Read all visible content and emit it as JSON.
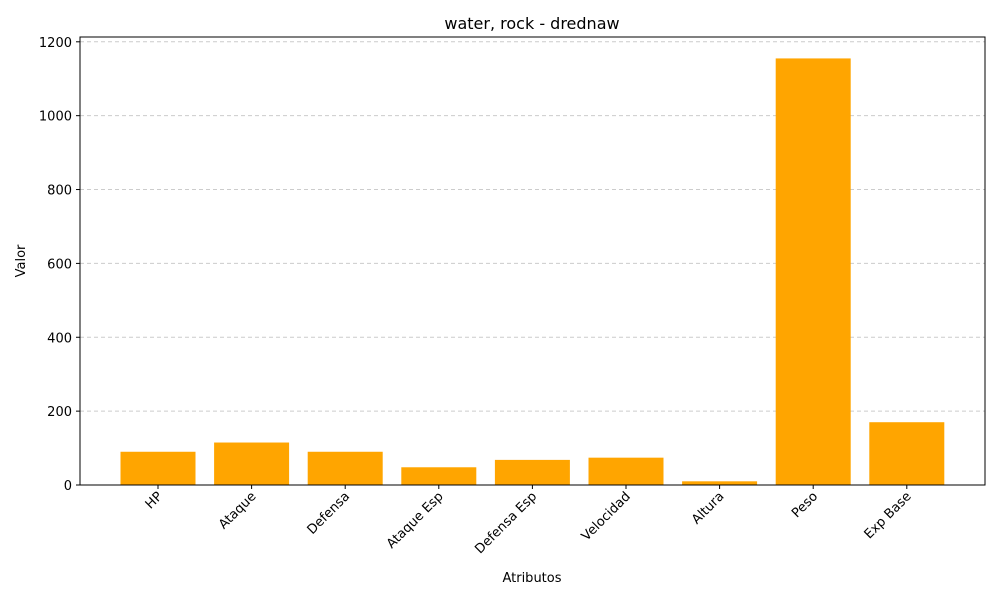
{
  "chart_data": {
    "type": "bar",
    "title": "water, rock - drednaw",
    "xlabel": "Atributos",
    "ylabel": "Valor",
    "categories": [
      "HP",
      "Ataque",
      "Defensa",
      "Ataque Esp",
      "Defensa Esp",
      "Velocidad",
      "Altura",
      "Peso",
      "Exp Base"
    ],
    "values": [
      90,
      115,
      90,
      48,
      68,
      74,
      10,
      1155,
      170
    ],
    "ylim": [
      0,
      1213
    ],
    "yticks": [
      0,
      200,
      400,
      600,
      800,
      1000,
      1200
    ],
    "grid": "y-dashed",
    "bar_color": "#FFA500",
    "grid_color": "#cccccc"
  }
}
